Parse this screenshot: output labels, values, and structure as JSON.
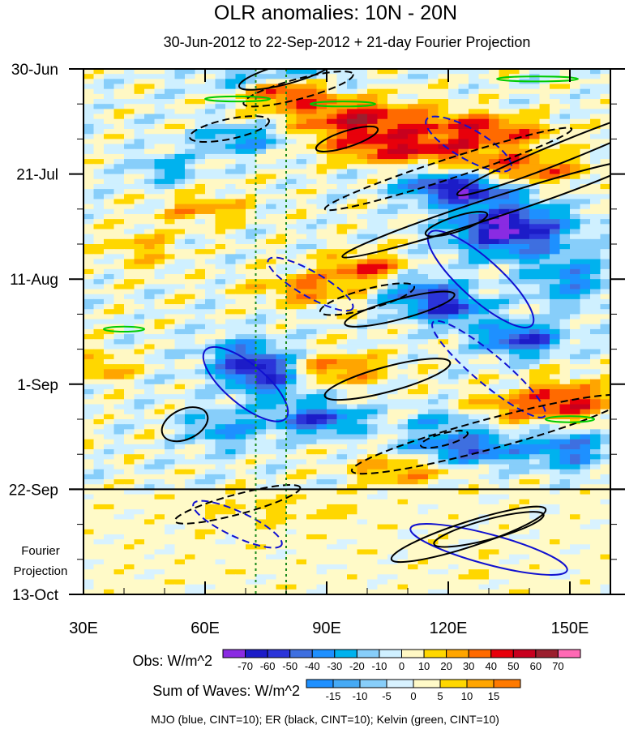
{
  "chart_data": {
    "type": "heatmap",
    "title": "OLR anomalies: 10N - 20N",
    "subtitle": "30-Jun-2012 to 22-Sep-2012 + 21-day Fourier Projection",
    "x_ticks": [
      {
        "value": 30,
        "label": "30E"
      },
      {
        "value": 60,
        "label": "60E"
      },
      {
        "value": 90,
        "label": "90E"
      },
      {
        "value": 120,
        "label": "120E"
      },
      {
        "value": 150,
        "label": "150E"
      }
    ],
    "xlim": [
      30,
      160
    ],
    "y_ticks": [
      {
        "day": 0,
        "label": "30-Jun"
      },
      {
        "day": 21,
        "label": "21-Jul"
      },
      {
        "day": 42,
        "label": "11-Aug"
      },
      {
        "day": 63,
        "label": "1-Sep"
      },
      {
        "day": 84,
        "label": "22-Sep"
      },
      {
        "day": 105,
        "label": "13-Oct"
      }
    ],
    "ylim_days": [
      0,
      105
    ],
    "projection_start_day": 84,
    "projection_label_line1": "Fourier",
    "projection_label_line2": "Projection",
    "reference_longitudes": [
      72.5,
      80
    ],
    "obs_colorbar": {
      "label": "Obs: W/m^2",
      "levels": [
        "-70",
        "-60",
        "-50",
        "-40",
        "-30",
        "-20",
        "-10",
        "0",
        "10",
        "20",
        "30",
        "40",
        "50",
        "60",
        "70"
      ],
      "colors": [
        "#8a2be2",
        "#1c1cc8",
        "#2b34d9",
        "#3e6fe0",
        "#1e90ff",
        "#00b2ee",
        "#87cefa",
        "#cff0ff",
        "#fff8c4",
        "#ffd700",
        "#ffa500",
        "#ff6a00",
        "#e8000b",
        "#c8001e",
        "#9b1f2e",
        "#ff69b4"
      ]
    },
    "waves_colorbar": {
      "label": "Sum of Waves: W/m^2",
      "levels": [
        "-15",
        "-10",
        "-5",
        "0",
        "5",
        "10",
        "15"
      ],
      "colors": [
        "#1e90ff",
        "#46aaf5",
        "#87cefa",
        "#d8f2ff",
        "#fffac8",
        "#ffd700",
        "#ffa500",
        "#ff7a00"
      ]
    },
    "legend_text": "MJO (blue, CINT=10); ER (black, CINT=10); Kelvin (green, CINT=10)",
    "contour_colors": {
      "MJO": "#1010d0",
      "ER": "#000000",
      "Kelvin": "#00cc00"
    }
  }
}
